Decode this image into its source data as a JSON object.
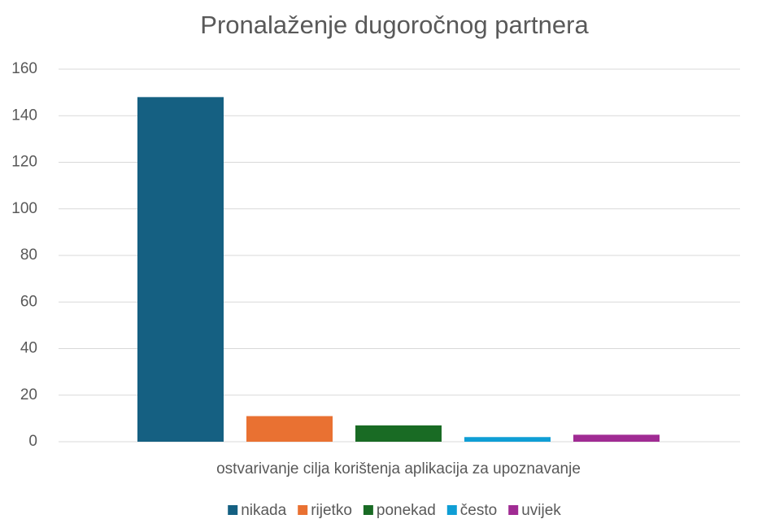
{
  "chart_data": {
    "type": "bar",
    "title": "Pronalaženje dugoročnog partnera",
    "categories": [
      "ostvarivanje cilja korištenja aplikacija za upoznavanje"
    ],
    "series": [
      {
        "name": "nikada",
        "color": "#156082",
        "values": [
          148
        ]
      },
      {
        "name": "rijetko",
        "color": "#e97132",
        "values": [
          11
        ]
      },
      {
        "name": "ponekad",
        "color": "#196b24",
        "values": [
          7
        ]
      },
      {
        "name": "često",
        "color": "#0f9ed5",
        "values": [
          2
        ]
      },
      {
        "name": "uvijek",
        "color": "#a02b93",
        "values": [
          3
        ]
      }
    ],
    "ylim": [
      0,
      160
    ],
    "yticks": [
      0,
      20,
      40,
      60,
      80,
      100,
      120,
      140,
      160
    ],
    "grid": true,
    "legend": "bottom"
  }
}
